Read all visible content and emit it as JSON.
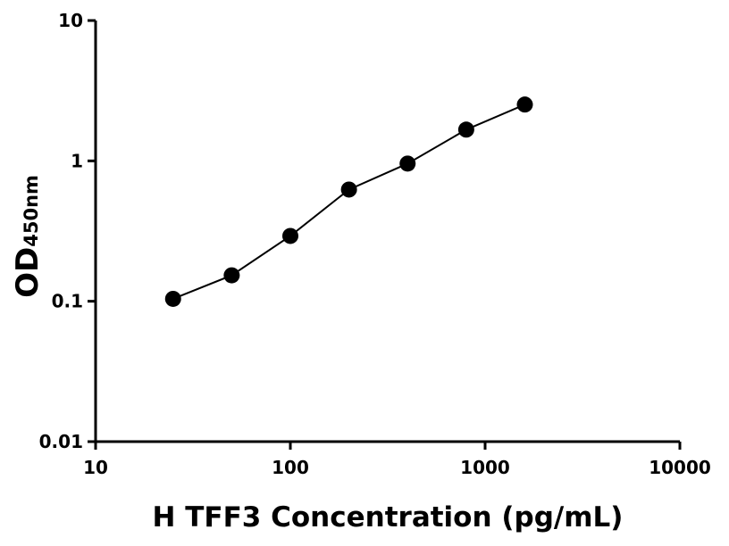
{
  "chart_data": {
    "type": "scatter",
    "x_label": "H TFF3 Concentration (pg/mL)",
    "y_label": "OD",
    "y_label_sub": "450nm",
    "x": [
      25,
      50,
      100,
      200,
      400,
      800,
      1600
    ],
    "series": [
      {
        "color": "#000000",
        "values": [
          0.104,
          0.153,
          0.292,
          0.625,
          0.957,
          1.67,
          2.52
        ]
      }
    ],
    "xlim": [
      10,
      10000
    ],
    "xticks": [
      10,
      100,
      1000,
      10000
    ],
    "ylim": [
      0.01,
      10
    ],
    "yticks": [
      0.01,
      0.1,
      1,
      10
    ],
    "xlog": true,
    "ylog": true,
    "fit_line": true,
    "grid": false
  }
}
